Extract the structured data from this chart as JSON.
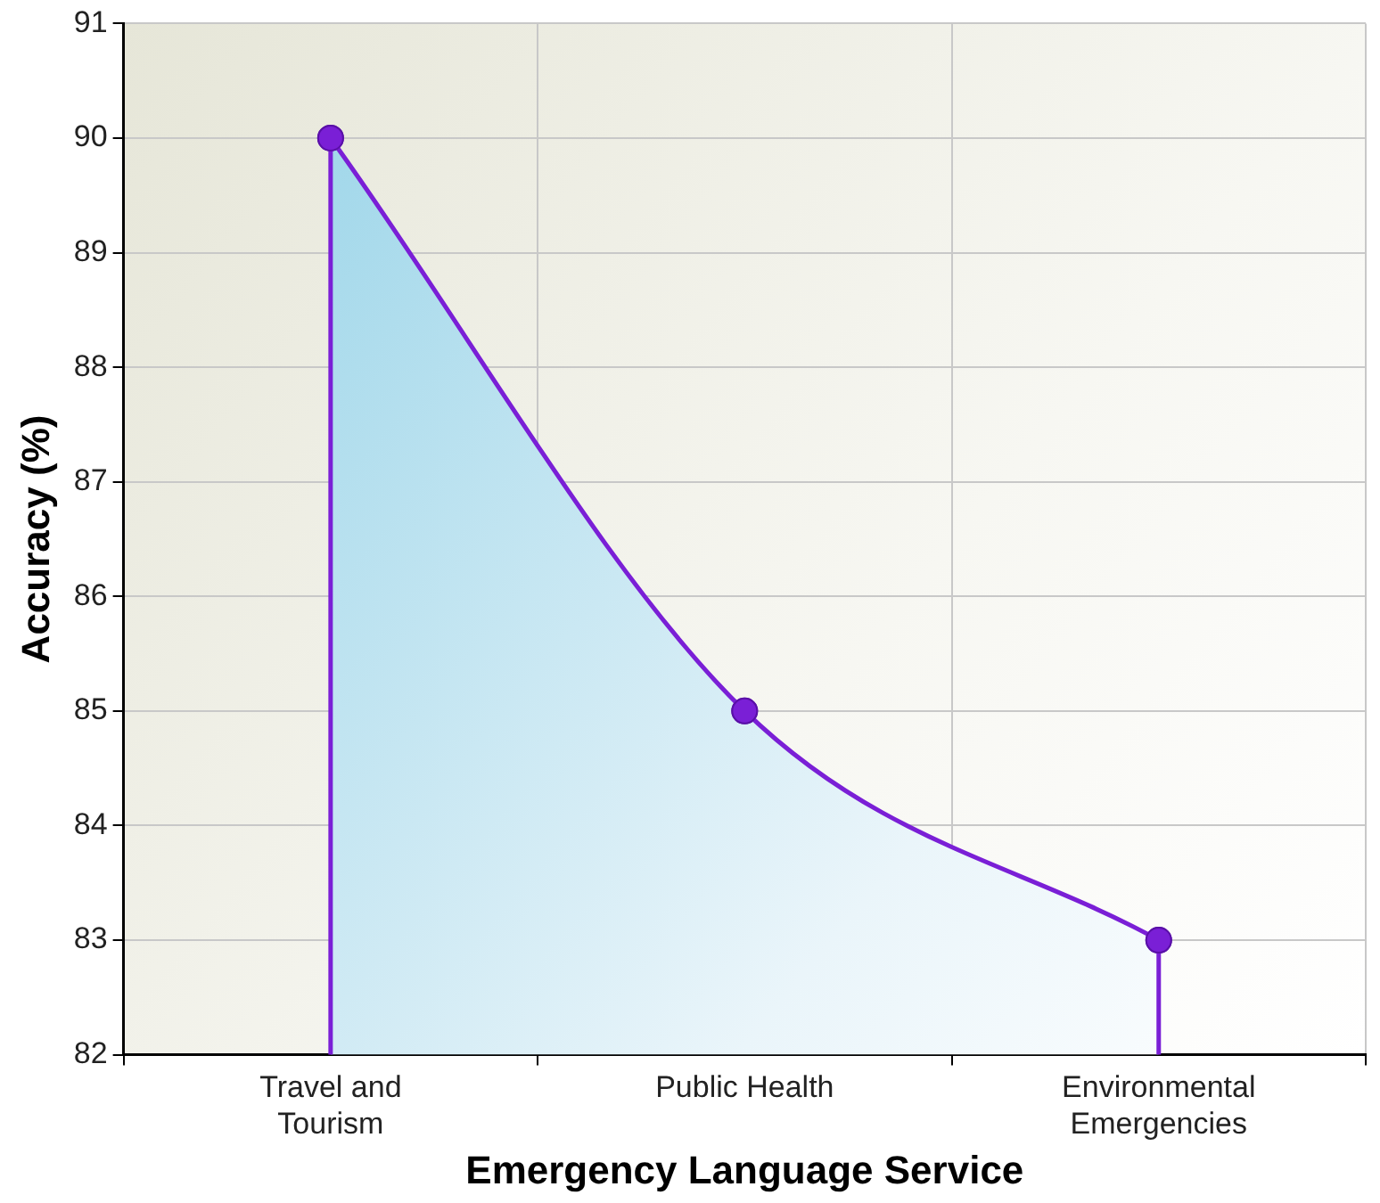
{
  "chart_data": {
    "type": "area",
    "xlabel": "Emergency Language Service",
    "ylabel": "Accuracy (%)",
    "categories": [
      "Travel and Tourism",
      "Public Health",
      "Environmental Emergencies"
    ],
    "series": [
      {
        "color": "#7a1fd6",
        "values": [
          90,
          85,
          83
        ]
      }
    ],
    "ylim": [
      82,
      91
    ],
    "yticks": [
      82,
      83,
      84,
      85,
      86,
      87,
      88,
      89,
      90,
      91
    ],
    "grid": true,
    "legend": false,
    "marker": "circle",
    "line_style": "solid"
  }
}
